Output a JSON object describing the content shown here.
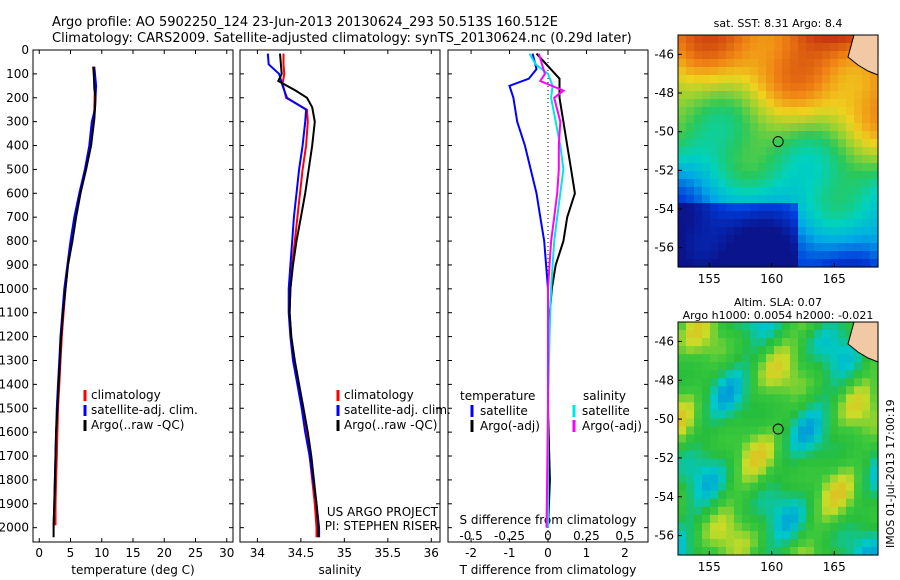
{
  "header": {
    "line1": "Argo profile: AO 5902250_124 23-Jun-2013 20130624_293 50.513S 160.512E",
    "line2": "Climatology: CARS2009. Satellite-adjusted climatology: synTS_20130624.nc (0.29d later)"
  },
  "depth_ticks": [
    "0",
    "100",
    "200",
    "300",
    "400",
    "500",
    "600",
    "700",
    "800",
    "900",
    "1000",
    "1100",
    "1200",
    "1300",
    "1400",
    "1500",
    "1600",
    "1700",
    "1800",
    "1900",
    "2000"
  ],
  "chart_data": [
    {
      "type": "line",
      "panel": "temperature",
      "xlabel": "temperature (deg C)",
      "xlim": [
        -1,
        31
      ],
      "ylim": [
        2060,
        0
      ],
      "x_ticks": [
        "0",
        "5",
        "10",
        "15",
        "20",
        "25",
        "30"
      ],
      "legend": [
        "climatology",
        "satellite-adj. clim.",
        "Argo(..raw -QC)"
      ],
      "series": [
        {
          "name": "climatology",
          "color": "#ff0000",
          "points": [
            [
              8.6,
              70
            ],
            [
              8.9,
              150
            ],
            [
              8.8,
              250
            ],
            [
              8.6,
              300
            ],
            [
              8.1,
              400
            ],
            [
              7.4,
              500
            ],
            [
              6.5,
              600
            ],
            [
              5.8,
              700
            ],
            [
              5.2,
              800
            ],
            [
              4.6,
              900
            ],
            [
              4.2,
              1000
            ],
            [
              3.9,
              1100
            ],
            [
              3.6,
              1200
            ],
            [
              3.4,
              1300
            ],
            [
              3.2,
              1400
            ],
            [
              3.0,
              1500
            ],
            [
              2.9,
              1600
            ],
            [
              2.8,
              1700
            ],
            [
              2.7,
              1800
            ],
            [
              2.6,
              1900
            ],
            [
              2.6,
              1990
            ]
          ]
        },
        {
          "name": "satellite-adj. clim.",
          "color": "#0000ff",
          "points": [
            [
              8.8,
              70
            ],
            [
              9.1,
              150
            ],
            [
              8.9,
              250
            ],
            [
              8.4,
              300
            ],
            [
              8.0,
              400
            ],
            [
              7.3,
              500
            ],
            [
              6.4,
              600
            ],
            [
              5.6,
              700
            ],
            [
              5.0,
              800
            ],
            [
              4.5,
              900
            ],
            [
              4.0,
              1000
            ],
            [
              3.7,
              1100
            ],
            [
              3.4,
              1200
            ],
            [
              3.2,
              1300
            ],
            [
              3.0,
              1400
            ],
            [
              2.8,
              1500
            ],
            [
              2.7,
              1600
            ],
            [
              2.6,
              1700
            ],
            [
              2.5,
              1800
            ],
            [
              2.4,
              1900
            ],
            [
              2.3,
              1990
            ]
          ]
        },
        {
          "name": "Argo(..raw -QC)",
          "color": "#000000",
          "points": [
            [
              8.7,
              70
            ],
            [
              8.8,
              160
            ],
            [
              9.0,
              200
            ],
            [
              8.9,
              250
            ],
            [
              8.8,
              290
            ],
            [
              8.3,
              400
            ],
            [
              7.5,
              500
            ],
            [
              6.6,
              600
            ],
            [
              5.9,
              700
            ],
            [
              5.3,
              800
            ],
            [
              4.6,
              900
            ],
            [
              4.2,
              1000
            ],
            [
              3.8,
              1100
            ],
            [
              3.5,
              1200
            ],
            [
              3.3,
              1300
            ],
            [
              3.1,
              1400
            ],
            [
              2.9,
              1500
            ],
            [
              2.7,
              1600
            ],
            [
              2.6,
              1700
            ],
            [
              2.5,
              1800
            ],
            [
              2.4,
              1900
            ],
            [
              2.3,
              2000
            ],
            [
              2.3,
              2040
            ]
          ]
        }
      ]
    },
    {
      "type": "line",
      "panel": "salinity",
      "xlabel": "salinity",
      "xlim": [
        33.8,
        36.1
      ],
      "ylim": [
        2060,
        0
      ],
      "x_ticks": [
        "34",
        "34.5",
        "35",
        "35.5",
        "36"
      ],
      "legend": [
        "climatology",
        "satellite-adj. clim.",
        "Argo(..raw -QC)"
      ],
      "annotation": [
        "US ARGO PROJECT",
        "PI: STEPHEN RISER"
      ],
      "series": [
        {
          "name": "climatology",
          "color": "#ff0000",
          "points": [
            [
              34.3,
              15
            ],
            [
              34.3,
              60
            ],
            [
              34.31,
              100
            ],
            [
              34.29,
              140
            ],
            [
              34.33,
              200
            ],
            [
              34.57,
              250
            ],
            [
              34.58,
              300
            ],
            [
              34.56,
              400
            ],
            [
              34.52,
              500
            ],
            [
              34.49,
              600
            ],
            [
              34.46,
              700
            ],
            [
              34.43,
              800
            ],
            [
              34.4,
              900
            ],
            [
              34.38,
              1000
            ],
            [
              34.37,
              1100
            ],
            [
              34.39,
              1200
            ],
            [
              34.42,
              1300
            ],
            [
              34.47,
              1400
            ],
            [
              34.52,
              1500
            ],
            [
              34.56,
              1600
            ],
            [
              34.6,
              1700
            ],
            [
              34.63,
              1800
            ],
            [
              34.66,
              1900
            ],
            [
              34.68,
              2000
            ],
            [
              34.68,
              2040
            ]
          ]
        },
        {
          "name": "satellite-adj. clim.",
          "color": "#0000ff",
          "points": [
            [
              34.12,
              15
            ],
            [
              34.13,
              60
            ],
            [
              34.25,
              100
            ],
            [
              34.29,
              150
            ],
            [
              34.34,
              200
            ],
            [
              34.56,
              250
            ],
            [
              34.55,
              300
            ],
            [
              34.52,
              400
            ],
            [
              34.48,
              500
            ],
            [
              34.45,
              600
            ],
            [
              34.42,
              700
            ],
            [
              34.4,
              800
            ],
            [
              34.38,
              900
            ],
            [
              34.36,
              1000
            ],
            [
              34.36,
              1100
            ],
            [
              34.38,
              1200
            ],
            [
              34.41,
              1300
            ],
            [
              34.46,
              1400
            ],
            [
              34.51,
              1500
            ],
            [
              34.55,
              1600
            ],
            [
              34.6,
              1700
            ],
            [
              34.64,
              1800
            ],
            [
              34.68,
              1900
            ],
            [
              34.71,
              2000
            ],
            [
              34.71,
              2040
            ]
          ]
        },
        {
          "name": "Argo(..raw -QC)",
          "color": "#000000",
          "points": [
            [
              34.26,
              15
            ],
            [
              34.28,
              100
            ],
            [
              34.24,
              130
            ],
            [
              34.44,
              170
            ],
            [
              34.57,
              200
            ],
            [
              34.63,
              240
            ],
            [
              34.66,
              300
            ],
            [
              34.63,
              400
            ],
            [
              34.59,
              500
            ],
            [
              34.55,
              600
            ],
            [
              34.5,
              700
            ],
            [
              34.45,
              800
            ],
            [
              34.41,
              900
            ],
            [
              34.38,
              1000
            ],
            [
              34.37,
              1100
            ],
            [
              34.39,
              1200
            ],
            [
              34.43,
              1300
            ],
            [
              34.48,
              1400
            ],
            [
              34.53,
              1500
            ],
            [
              34.58,
              1600
            ],
            [
              34.62,
              1700
            ],
            [
              34.65,
              1800
            ],
            [
              34.68,
              1900
            ],
            [
              34.7,
              2000
            ],
            [
              34.7,
              2040
            ]
          ]
        }
      ]
    },
    {
      "type": "line",
      "panel": "difference",
      "xlabel": "T difference from climatology",
      "xlabel_top": "S difference from climatology",
      "xlim": [
        -2.6,
        2.6
      ],
      "ylim": [
        2060,
        0
      ],
      "x_ticks": [
        "-2",
        "-1",
        "0",
        "1",
        "2"
      ],
      "s_ticks": [
        "-0.5",
        "-0.25",
        "0",
        "0.25",
        "0.5"
      ],
      "legend_temperature": {
        "title": "temperature",
        "items": [
          "satellite",
          "Argo(-adj)"
        ]
      },
      "legend_salinity": {
        "title": "salinity",
        "items": [
          "satellite",
          "Argo(-adj)"
        ]
      },
      "series": [
        {
          "name": "T satellite",
          "color": "#0000ff",
          "points": [
            [
              -0.4,
              15
            ],
            [
              -0.3,
              80
            ],
            [
              -0.5,
              120
            ],
            [
              -1.0,
              150
            ],
            [
              -0.9,
              200
            ],
            [
              -0.8,
              300
            ],
            [
              -0.6,
              400
            ],
            [
              -0.45,
              500
            ],
            [
              -0.3,
              600
            ],
            [
              -0.2,
              700
            ],
            [
              -0.1,
              800
            ],
            [
              -0.05,
              900
            ],
            [
              0,
              1000
            ],
            [
              0,
              1200
            ],
            [
              0,
              1500
            ],
            [
              0,
              2000
            ]
          ]
        },
        {
          "name": "T Argo(-adj)",
          "color": "#000000",
          "points": [
            [
              -0.3,
              15
            ],
            [
              0.3,
              120
            ],
            [
              0.3,
              200
            ],
            [
              0.4,
              300
            ],
            [
              0.5,
              400
            ],
            [
              0.6,
              500
            ],
            [
              0.7,
              600
            ],
            [
              0.5,
              700
            ],
            [
              0.4,
              800
            ],
            [
              0.2,
              900
            ],
            [
              0.1,
              1000
            ],
            [
              0,
              1200
            ],
            [
              0,
              1500
            ],
            [
              0.05,
              1800
            ],
            [
              0,
              2000
            ]
          ]
        },
        {
          "name": "S satellite",
          "color": "#00e5e5",
          "points": [
            [
              -0.12,
              15
            ],
            [
              -0.08,
              60
            ],
            [
              0,
              100
            ],
            [
              0.03,
              150
            ],
            [
              0.02,
              200
            ],
            [
              0.05,
              300
            ],
            [
              0.08,
              400
            ],
            [
              0.1,
              500
            ],
            [
              0.08,
              600
            ],
            [
              0.06,
              700
            ],
            [
              0.04,
              800
            ],
            [
              0.03,
              900
            ],
            [
              0.02,
              1000
            ],
            [
              0.01,
              1200
            ],
            [
              0,
              1500
            ],
            [
              0,
              2000
            ]
          ]
        },
        {
          "name": "S Argo(-adj)",
          "color": "#ff00ff",
          "points": [
            [
              -0.06,
              15
            ],
            [
              -0.02,
              100
            ],
            [
              -0.05,
              130
            ],
            [
              0.1,
              170
            ],
            [
              0.04,
              200
            ],
            [
              0.08,
              300
            ],
            [
              0.07,
              400
            ],
            [
              0.07,
              500
            ],
            [
              0.06,
              600
            ],
            [
              0.04,
              700
            ],
            [
              0.02,
              800
            ],
            [
              0.01,
              900
            ],
            [
              0,
              1000
            ],
            [
              0,
              1500
            ],
            [
              -0.01,
              2000
            ]
          ]
        }
      ]
    },
    {
      "type": "heatmap",
      "panel": "sst-map",
      "title": "sat. SST: 8.31 Argo: 8.4",
      "x_ticks": [
        "155",
        "160",
        "165"
      ],
      "y_ticks": [
        "-46",
        "-48",
        "-50",
        "-52",
        "-54",
        "-56"
      ],
      "xlim": [
        152.5,
        168.5
      ],
      "ylim": [
        -57,
        -45
      ],
      "argo_position": [
        160.512,
        -50.513
      ]
    },
    {
      "type": "heatmap",
      "panel": "sla-map",
      "title": "Altim. SLA: 0.07",
      "subtitle": "Argo h1000: 0.0054 h2000: -0.021",
      "x_ticks": [
        "155",
        "160",
        "165"
      ],
      "y_ticks": [
        "-46",
        "-48",
        "-50",
        "-52",
        "-54",
        "-56"
      ],
      "xlim": [
        152.5,
        168.5
      ],
      "ylim": [
        -57,
        -45
      ],
      "argo_position": [
        160.512,
        -50.513
      ]
    }
  ],
  "side_stamp": "IMOS 01-Jul-2013 17:00:19"
}
